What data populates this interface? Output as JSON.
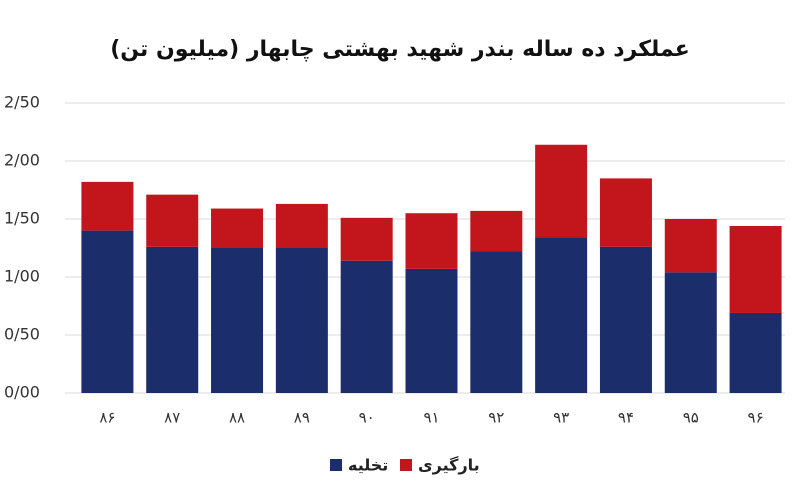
{
  "chart_data": {
    "type": "stacked_bar",
    "title": "عملکرد ده ساله بندر شهید بهشتی چابهار (میلیون تن)",
    "categories": [
      "۸۶",
      "۸۷",
      "۸۸",
      "۸۹",
      "۹۰",
      "۹۱",
      "۹۲",
      "۹۳",
      "۹۴",
      "۹۵",
      "۹۶"
    ],
    "series": [
      {
        "name": "تخلیه",
        "color": "#1b2d6b",
        "values": [
          1.4,
          1.26,
          1.25,
          1.25,
          1.14,
          1.07,
          1.22,
          1.34,
          1.26,
          1.04,
          0.69
        ]
      },
      {
        "name": "بارگیری",
        "color": "#c3161c",
        "values": [
          0.42,
          0.45,
          0.34,
          0.38,
          0.37,
          0.48,
          0.35,
          0.8,
          0.59,
          0.46,
          0.75
        ]
      }
    ],
    "ylim": [
      0,
      2.5
    ],
    "yticks": [
      {
        "value": 0,
        "label": "0/00"
      },
      {
        "value": 0.5,
        "label": "0/50"
      },
      {
        "value": 1,
        "label": "1/00"
      },
      {
        "value": 1.5,
        "label": "1/50"
      },
      {
        "value": 2,
        "label": "2/00"
      },
      {
        "value": 2.5,
        "label": "2/50"
      }
    ],
    "grid": true
  }
}
